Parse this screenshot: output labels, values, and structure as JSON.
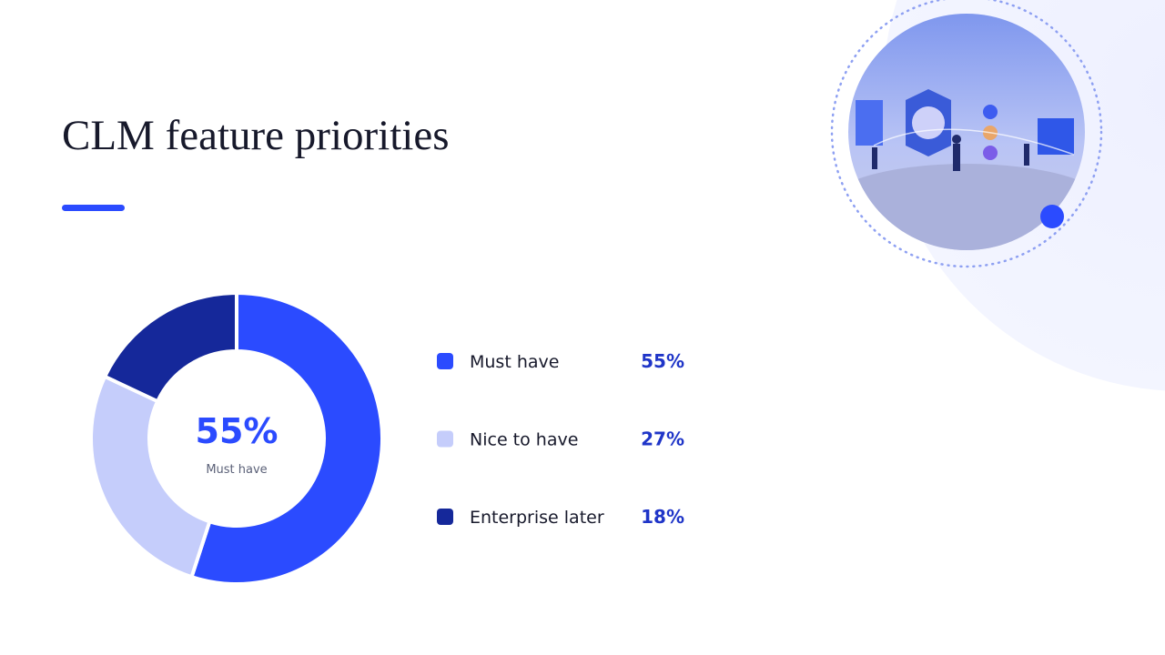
{
  "chart_data": {
    "type": "donut",
    "title": "CLM feature priorities",
    "categories": [
      "Must have",
      "Nice to have",
      "Enterprise later"
    ],
    "values": [
      55,
      27,
      18
    ],
    "value_labels": [
      "55%",
      "27%",
      "18%"
    ],
    "colors": [
      "#2b4bff",
      "#c5cdfb",
      "#15289a"
    ]
  }
}
